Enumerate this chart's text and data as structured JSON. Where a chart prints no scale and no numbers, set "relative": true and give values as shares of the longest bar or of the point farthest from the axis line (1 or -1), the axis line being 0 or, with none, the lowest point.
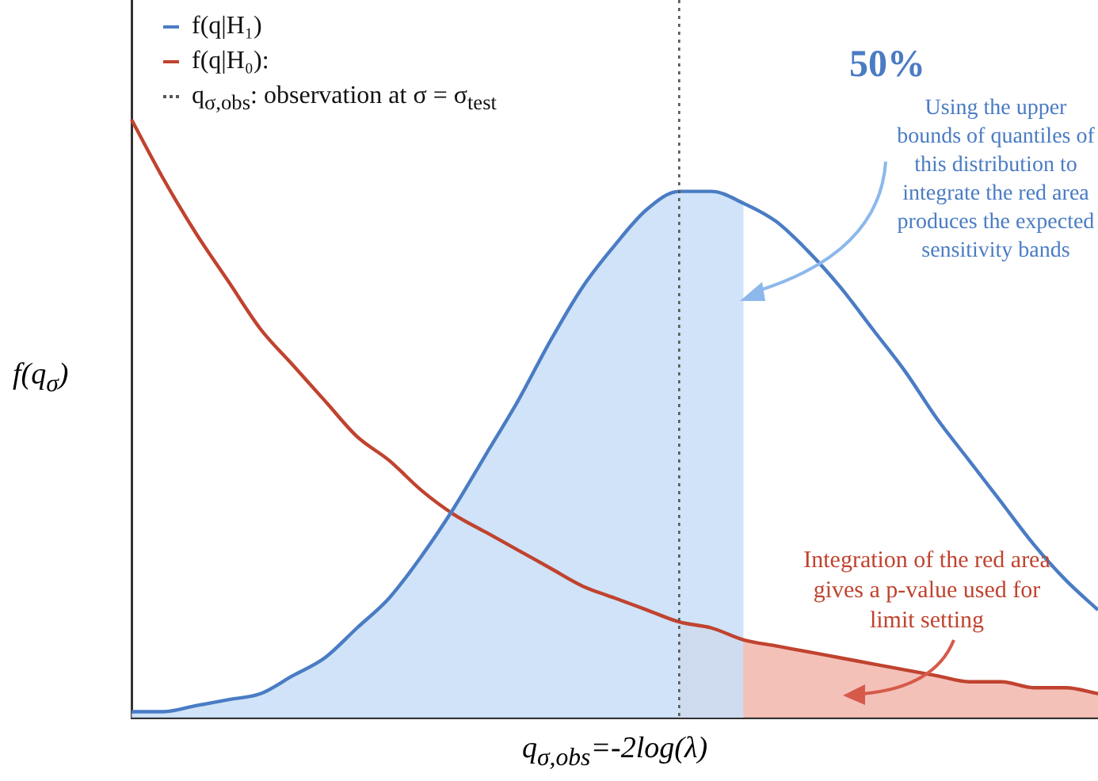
{
  "chart_data": {
    "type": "line",
    "relative": true,
    "xlabel": "q$_{σ,obs}$=-2log(λ)",
    "ylabel": "f(q$_{σ}$)",
    "categories": [
      null,
      null,
      null,
      null,
      null,
      null,
      null,
      null,
      null,
      null,
      null,
      null,
      null,
      null,
      null,
      null,
      null,
      null,
      null,
      null,
      null,
      null,
      null,
      null,
      null,
      null,
      null,
      null,
      null,
      null,
      null
    ],
    "series": [
      {
        "type": "area",
        "color": "#c9dff7",
        "values": [
          0.01,
          0.01,
          0.02,
          0.03,
          0.04,
          0.07,
          0.1,
          0.15,
          0.2,
          0.27,
          0.35,
          0.44,
          0.53,
          0.63,
          0.72,
          0.79,
          0.85,
          0.88,
          0.88,
          0.86,
          null,
          null,
          null,
          null,
          null,
          null,
          null,
          null,
          null,
          null,
          null
        ]
      },
      {
        "type": "area",
        "color": "#f2b8ae",
        "values": [
          null,
          null,
          null,
          null,
          null,
          null,
          null,
          null,
          null,
          null,
          null,
          null,
          null,
          null,
          null,
          null,
          null,
          0.16,
          0.15,
          0.13,
          0.12,
          0.11,
          0.1,
          0.09,
          0.08,
          0.07,
          0.06,
          0.06,
          0.05,
          0.05,
          0.04
        ]
      },
      {
        "name": "f(q|H₁)",
        "color": "#4a7cc4",
        "values": [
          0.01,
          0.01,
          0.02,
          0.03,
          0.04,
          0.07,
          0.1,
          0.15,
          0.2,
          0.27,
          0.35,
          0.44,
          0.53,
          0.63,
          0.72,
          0.79,
          0.85,
          0.88,
          0.88,
          0.86,
          0.83,
          0.78,
          0.72,
          0.65,
          0.58,
          0.5,
          0.43,
          0.36,
          0.29,
          0.23,
          0.18
        ]
      },
      {
        "name": "f(q|H₀):",
        "color": "#c0432f",
        "values": [
          1,
          0.9,
          0.81,
          0.73,
          0.65,
          0.59,
          0.53,
          0.47,
          0.43,
          0.38,
          0.34,
          0.31,
          0.28,
          0.25,
          0.22,
          0.2,
          0.18,
          0.16,
          0.15,
          0.13,
          0.12,
          0.11,
          0.1,
          0.09,
          0.08,
          0.07,
          0.06,
          0.06,
          0.05,
          0.05,
          0.04
        ]
      }
    ],
    "legend": "top left",
    "grid": false,
    "marker": "none",
    "annotations": [
      "50%",
      "Using the upper bounds of quantiles of this distribution to integrate the red area produces the expected sensitivity bands",
      "Integration of the red area gives a p-value used for limit setting",
      "q$_{σ,obs}$: observation at σ = σ$_{test}$"
    ]
  }
}
